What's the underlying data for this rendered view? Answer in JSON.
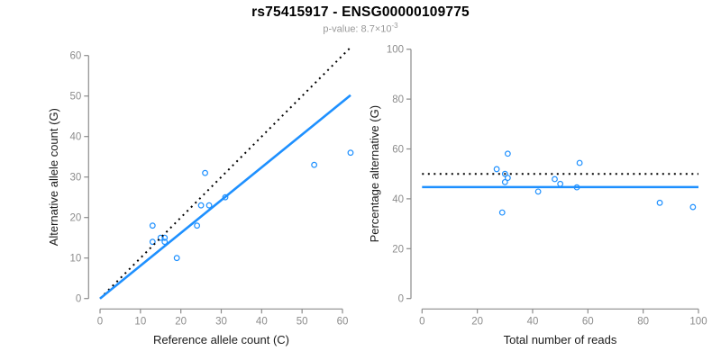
{
  "title": "rs75415917 - ENSG00000109775",
  "p_value": {
    "prefix": "p-value: 8.7×10",
    "exponent": "-3"
  },
  "colors": {
    "points": "#1E90FF",
    "fit_line": "#1E90FF",
    "reference_line": "#000000",
    "axis": "#8C8C8C",
    "tick_labels": "#8C8C8C",
    "axis_titles": "#1A1A1A",
    "title": "#000000",
    "subtitle": "#999999",
    "background": "#FFFFFF"
  },
  "chart_data": [
    {
      "type": "scatter",
      "name": "allele-counts-scatter",
      "xlabel": "Reference allele count (C)",
      "ylabel": "Alternative allele count (G)",
      "xlim": [
        0,
        60
      ],
      "ylim": [
        0,
        60
      ],
      "xticks": [
        0,
        10,
        20,
        30,
        40,
        50,
        60
      ],
      "yticks": [
        0,
        10,
        20,
        30,
        40,
        50,
        60
      ],
      "grid": false,
      "points": [
        [
          13,
          14
        ],
        [
          13,
          18
        ],
        [
          15,
          15
        ],
        [
          16,
          15
        ],
        [
          16,
          14
        ],
        [
          19,
          10
        ],
        [
          24,
          18
        ],
        [
          25,
          23
        ],
        [
          26,
          31
        ],
        [
          27,
          23
        ],
        [
          31,
          25
        ],
        [
          53,
          33
        ],
        [
          62,
          36
        ]
      ],
      "lines": [
        {
          "name": "identity-line",
          "style": "dotted",
          "color": "#000000",
          "x1": 0,
          "y1": 0,
          "x2": 62,
          "y2": 62
        },
        {
          "name": "fit-line",
          "style": "solid",
          "color": "#1E90FF",
          "x1": 0,
          "y1": 0,
          "x2": 62,
          "y2": 50.2
        }
      ]
    },
    {
      "type": "scatter",
      "name": "percentage-vs-reads-scatter",
      "xlabel": "Total number of reads",
      "ylabel": "Percentage alternative (G)",
      "xlim": [
        0,
        100
      ],
      "ylim": [
        0,
        100
      ],
      "xticks": [
        0,
        20,
        40,
        60,
        80,
        100
      ],
      "yticks": [
        0,
        20,
        40,
        60,
        80,
        100
      ],
      "grid": false,
      "points": [
        [
          27,
          51.9
        ],
        [
          31,
          58.1
        ],
        [
          30,
          50.0
        ],
        [
          31,
          48.4
        ],
        [
          30,
          46.7
        ],
        [
          29,
          34.5
        ],
        [
          42,
          42.9
        ],
        [
          48,
          47.9
        ],
        [
          50,
          46.0
        ],
        [
          57,
          54.4
        ],
        [
          56,
          44.6
        ],
        [
          86,
          38.4
        ],
        [
          98,
          36.7
        ]
      ],
      "lines": [
        {
          "name": "expected-percentage-line",
          "style": "dotted",
          "color": "#000000",
          "x1": 0,
          "y1": 50,
          "x2": 100,
          "y2": 50
        },
        {
          "name": "observed-percentage-line",
          "style": "solid",
          "color": "#1E90FF",
          "x1": 0,
          "y1": 44.7,
          "x2": 100,
          "y2": 44.7
        }
      ]
    }
  ]
}
